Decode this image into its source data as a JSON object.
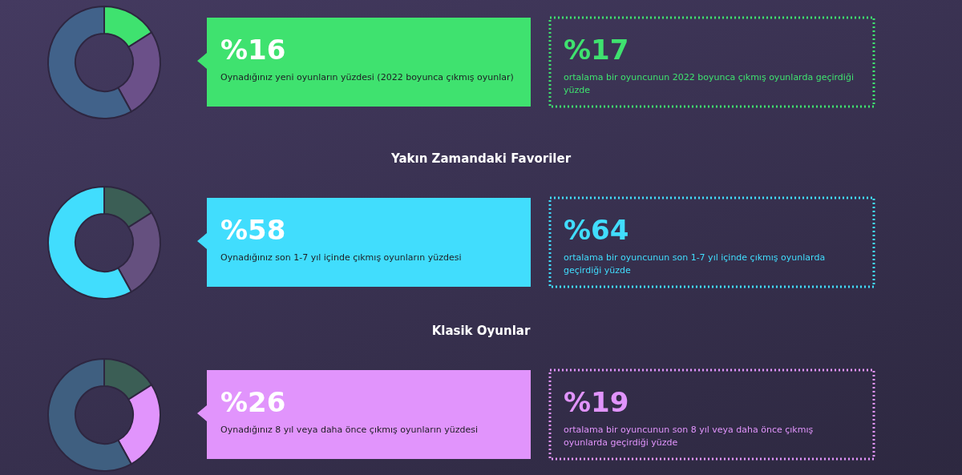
{
  "chart_data": [
    {
      "type": "donut",
      "categories": [
        null,
        null,
        null
      ],
      "values": [
        16,
        26,
        58
      ],
      "colors": [
        "#3fe26f",
        "#6b5089",
        "#41628a"
      ]
    },
    {
      "type": "other",
      "color": "#3fe26f",
      "annotations": [
        "%16",
        "Oynadığınız yeni oyunların yüzdesi (2022 boyunca çıkmış oyunlar)",
        "%17",
        "ortalama bir oyuncunun 2022 boyunca çıkmış oyunlarda geçirdiği yüzde"
      ]
    },
    {
      "type": "donut",
      "categories": [
        null,
        null,
        null
      ],
      "values": [
        16,
        26,
        58
      ],
      "colors": [
        "#3b5e55",
        "#65507f",
        "#41ddfd"
      ]
    },
    {
      "type": "other",
      "title": "Yakın Zamandaki Favoriler",
      "color": "#41ddfd",
      "annotations": [
        "%58",
        "Oynadığınız son 1-7 yıl içinde çıkmış oyunların yüzdesi",
        "%64",
        "ortalama bir oyuncunun son 1-7 yıl içinde çıkmış oyunlarda geçirdiği yüzde"
      ]
    },
    {
      "type": "donut",
      "categories": [
        null,
        null,
        null
      ],
      "values": [
        16,
        26,
        58
      ],
      "colors": [
        "#3b5e55",
        "#e194fc",
        "#3f5f80"
      ]
    },
    {
      "type": "other",
      "title": "Klasik Oyunlar",
      "color": "#e194fc",
      "annotations": [
        "%26",
        "Oynadığınız 8 yıl veya daha önce çıkmış oyunların yüzdesi",
        "%19",
        "ortalama bir oyuncunun son 8 yıl veya daha önce çıkmış oyunlarda geçirdiği yüzde"
      ]
    }
  ]
}
